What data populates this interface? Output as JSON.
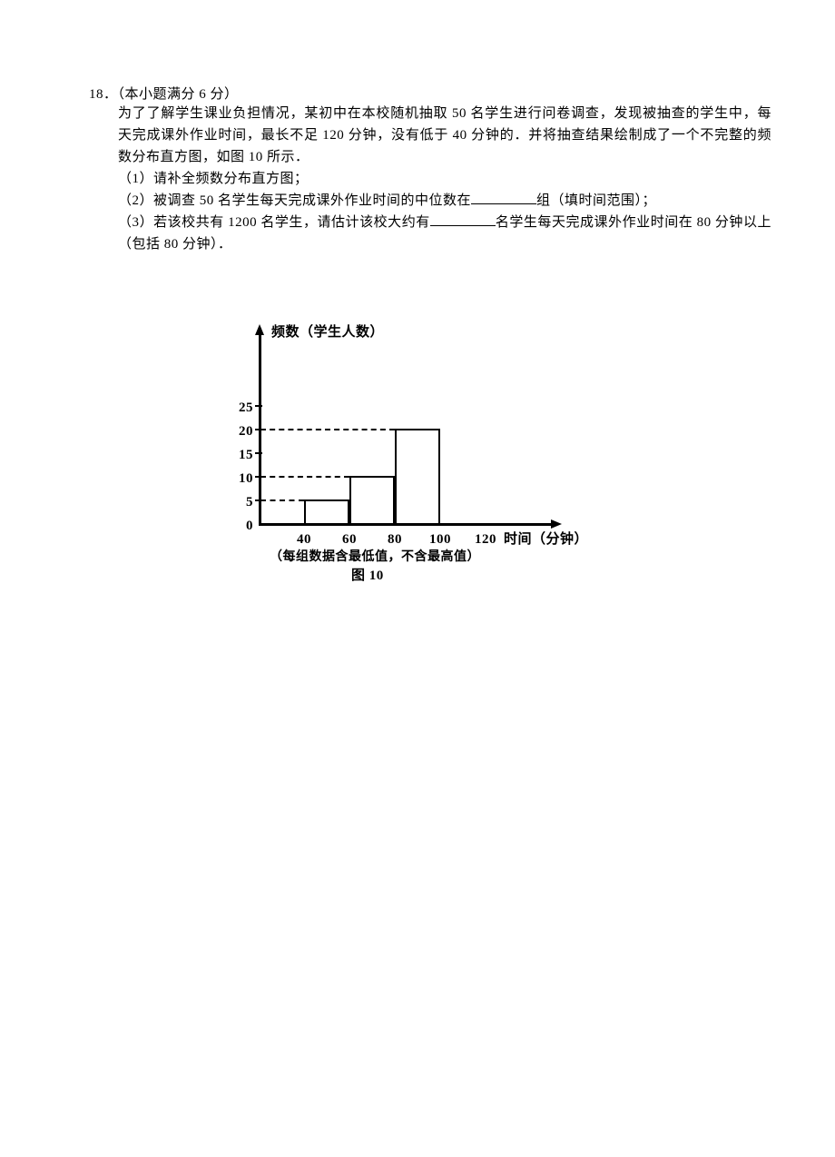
{
  "problem": {
    "number": "18．",
    "header_suffix": "（本小题满分 6 分）",
    "line1": "为了了解学生课业负担情况，某初中在本校随机抽取 50 名学生进行问卷调查，发现被抽查的学生中，每天完成课外作业时间，最长不足 120 分钟，没有低于 40 分钟的．并将抽查结果绘制成了一个不完整的频数分布直方图，如图 10 所示．",
    "q1": "（1）请补全频数分布直方图；",
    "q2_pre": "（2）被调查 50 名学生每天完成课外作业时间的中位数在",
    "q2_post": "组（填时间范围）；",
    "q3_pre": "（3）若该校共有 1200 名学生，请估计该校大约有",
    "q3_post": "名学生每天完成课外作业时间在 80 分钟以上（包括 80 分钟）．"
  },
  "chart": {
    "y_axis_title": "频数（学生人数）",
    "x_axis_title": "时间（分钟）",
    "note": "（每组数据含最低值，不含最高值）",
    "caption": "图 10",
    "origin_x": 95,
    "origin_y": 225,
    "x_step": 50,
    "y_step": 26,
    "y_tick_step_val": 5,
    "y_ticks": [
      0,
      5,
      10,
      15,
      20,
      25
    ],
    "x_ticks": [
      40,
      60,
      80,
      100,
      120
    ],
    "bars": [
      {
        "from": 40,
        "to": 60,
        "value": 5
      },
      {
        "from": 60,
        "to": 80,
        "value": 10
      },
      {
        "from": 80,
        "to": 100,
        "value": 20
      }
    ],
    "dashed_lines": [
      5,
      10,
      20
    ],
    "colors": {
      "axis": "#000000",
      "bar_border": "#000000",
      "bar_fill": "#ffffff",
      "text": "#000000"
    },
    "font_size_labels": 15,
    "line_width_axis": 2.5,
    "line_width_bar": 2.5
  }
}
